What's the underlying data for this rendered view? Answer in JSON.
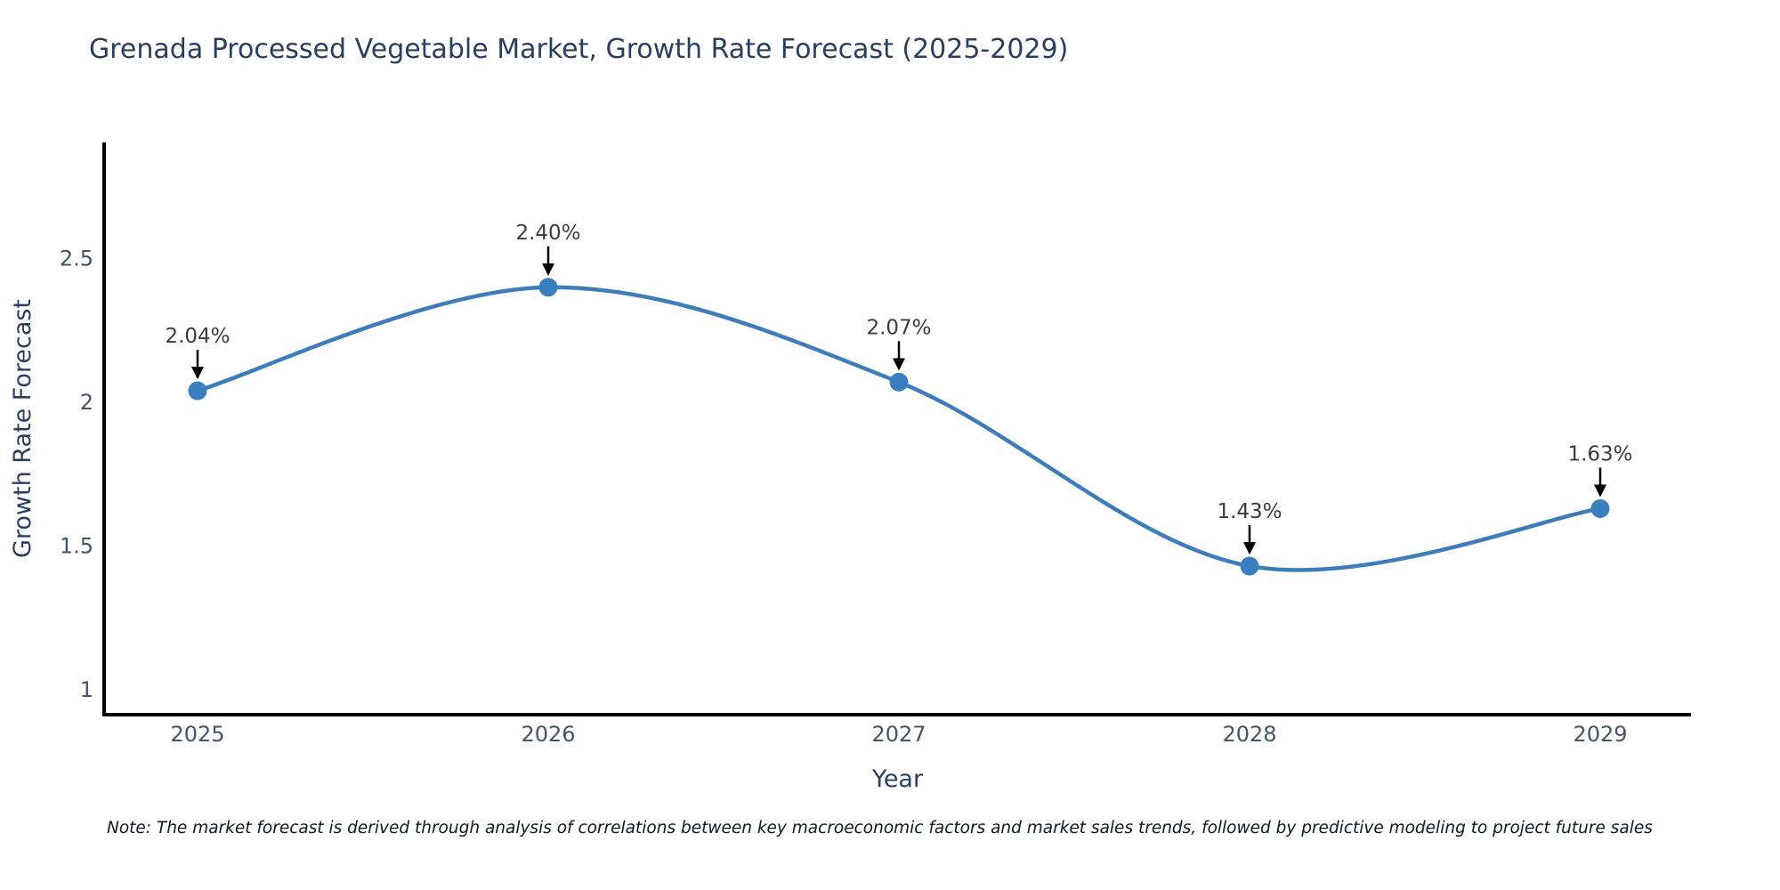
{
  "page": {
    "title": "Grenada Processed Vegetable Market, Growth Rate Forecast (2025-2029)",
    "note": "Note: The market forecast is derived through analysis of correlations between key macroeconomic factors and market sales trends, followed by predictive modeling to project future sales"
  },
  "chart_data": {
    "type": "line",
    "title": "Grenada Processed Vegetable Market, Growth Rate Forecast (2025-2029)",
    "x": [
      "2025",
      "2026",
      "2027",
      "2028",
      "2029"
    ],
    "series": [
      {
        "name": "Growth Rate Forecast",
        "values": [
          2.04,
          2.4,
          2.07,
          1.43,
          1.63
        ]
      }
    ],
    "point_labels": [
      "2.04%",
      "2.40%",
      "2.07%",
      "1.43%",
      "1.63%"
    ],
    "xlabel": "Year",
    "ylabel": "Growth Rate Forecast",
    "yticks": [
      1,
      1.5,
      2,
      2.5
    ],
    "ylim": [
      0.913,
      2.904
    ],
    "line_shape": "spline",
    "grid": false,
    "legend_position": "none",
    "markers": true,
    "annotation_arrows": true,
    "colors": {
      "line": "#3f7db8",
      "marker": "#3a7ebf",
      "axis": "#000000",
      "annotation_arrow": "#000000",
      "annotation_text": "#3d3d3d",
      "title_text": "#2a3f5f",
      "tick_text": "#42556a"
    }
  }
}
